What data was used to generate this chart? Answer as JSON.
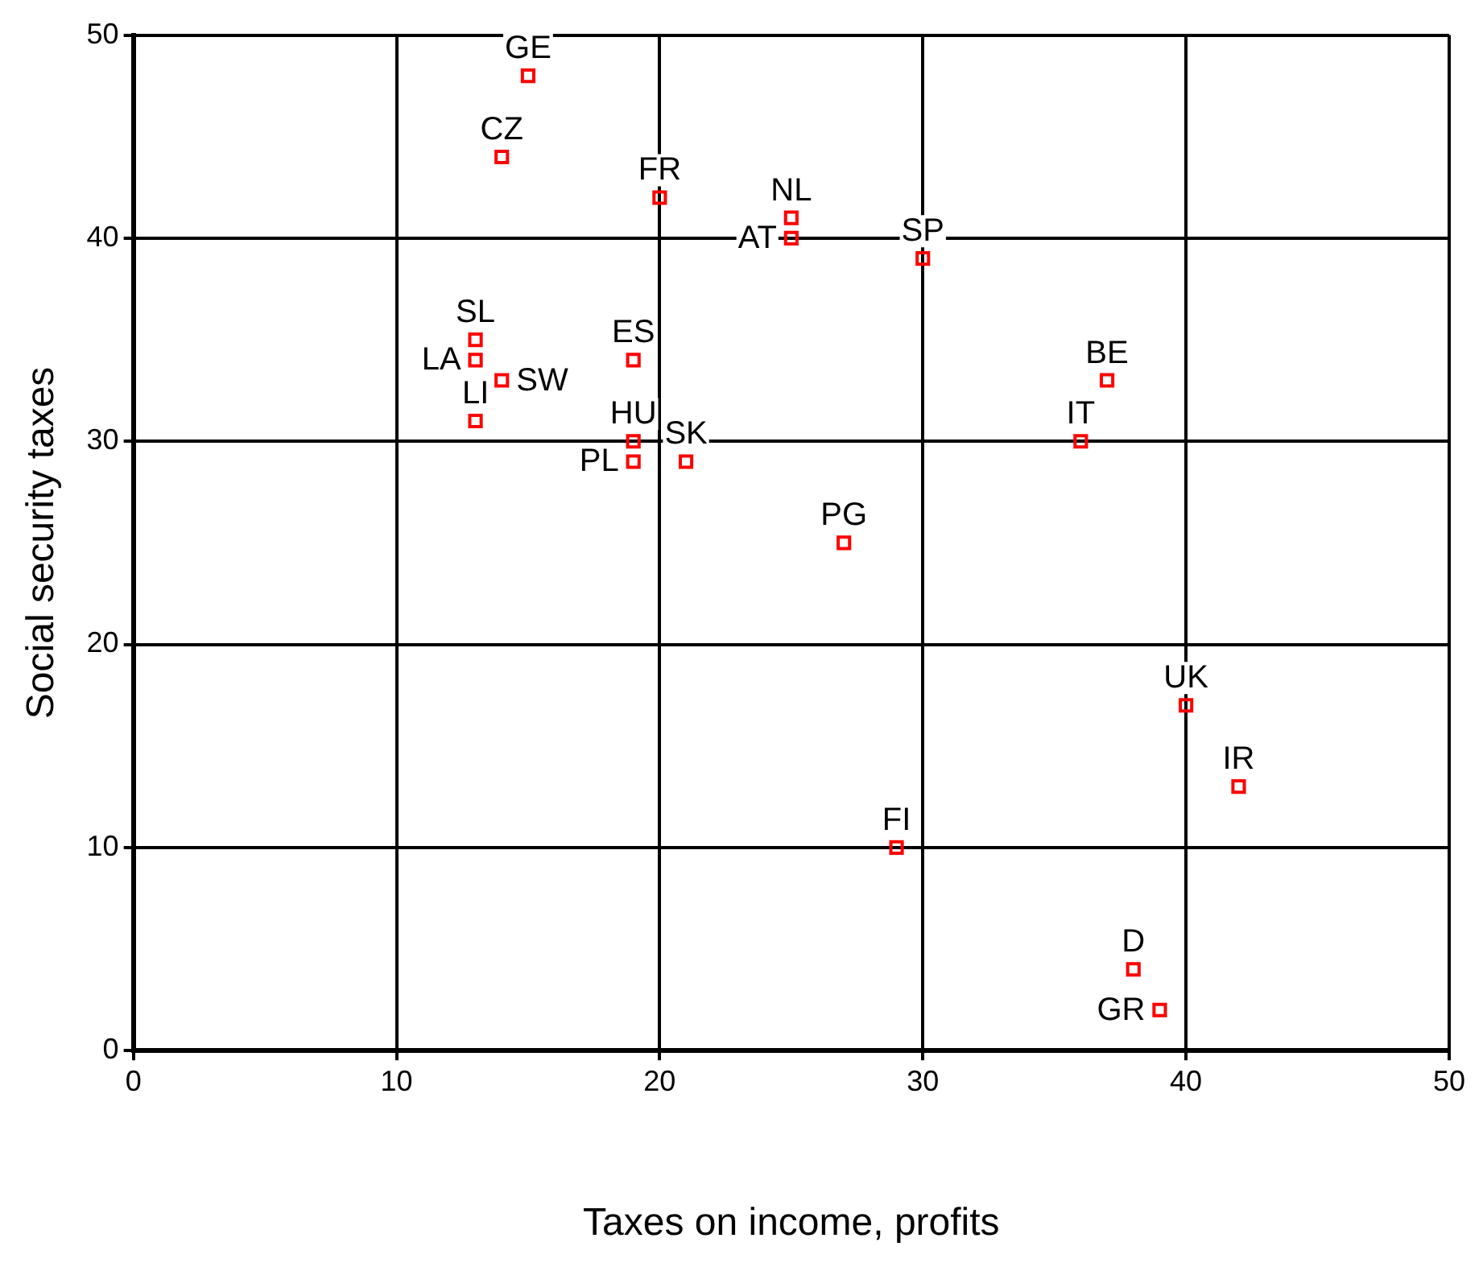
{
  "chart_data": {
    "type": "scatter",
    "xlabel": "Taxes on income, profits",
    "ylabel": "Social security taxes",
    "x": [
      15,
      14,
      20,
      25,
      25,
      30,
      13,
      13,
      14,
      13,
      19,
      19,
      19,
      21,
      27,
      37,
      36,
      40,
      42,
      29,
      38,
      39
    ],
    "series": [
      {
        "color": "#ff0000",
        "values": [
          48,
          44,
          42,
          41,
          40,
          39,
          35,
          34,
          33,
          31,
          34,
          30,
          29,
          29,
          25,
          33,
          30,
          17,
          13,
          10,
          4,
          2
        ]
      }
    ],
    "annotations": [
      {
        "text": "GE",
        "x": 15,
        "y": 48
      },
      {
        "text": "CZ",
        "x": 14,
        "y": 44
      },
      {
        "text": "FR",
        "x": 20,
        "y": 42
      },
      {
        "text": "NL",
        "x": 25,
        "y": 41
      },
      {
        "text": "AT",
        "x": 25,
        "y": 40
      },
      {
        "text": "SP",
        "x": 30,
        "y": 39
      },
      {
        "text": "SL",
        "x": 13,
        "y": 35
      },
      {
        "text": "LA",
        "x": 13,
        "y": 34
      },
      {
        "text": "SW",
        "x": 14,
        "y": 33
      },
      {
        "text": "LI",
        "x": 13,
        "y": 31
      },
      {
        "text": "ES",
        "x": 19,
        "y": 34
      },
      {
        "text": "HU",
        "x": 19,
        "y": 30
      },
      {
        "text": "PL",
        "x": 19,
        "y": 29
      },
      {
        "text": "SK",
        "x": 21,
        "y": 29
      },
      {
        "text": "PG",
        "x": 27,
        "y": 25
      },
      {
        "text": "BE",
        "x": 37,
        "y": 33
      },
      {
        "text": "IT",
        "x": 36,
        "y": 30
      },
      {
        "text": "UK",
        "x": 40,
        "y": 17
      },
      {
        "text": "IR",
        "x": 42,
        "y": 13
      },
      {
        "text": "FI",
        "x": 29,
        "y": 10
      },
      {
        "text": "D",
        "x": 38,
        "y": 4
      },
      {
        "text": "GR",
        "x": 39,
        "y": 2
      }
    ],
    "xlim": [
      0,
      50
    ],
    "xticks": [
      0,
      10,
      20,
      30,
      40,
      50
    ],
    "ylim": [
      0,
      50
    ],
    "yticks": [
      0,
      10,
      20,
      30,
      40,
      50
    ],
    "grid": true,
    "legend": false,
    "marker": "square"
  }
}
